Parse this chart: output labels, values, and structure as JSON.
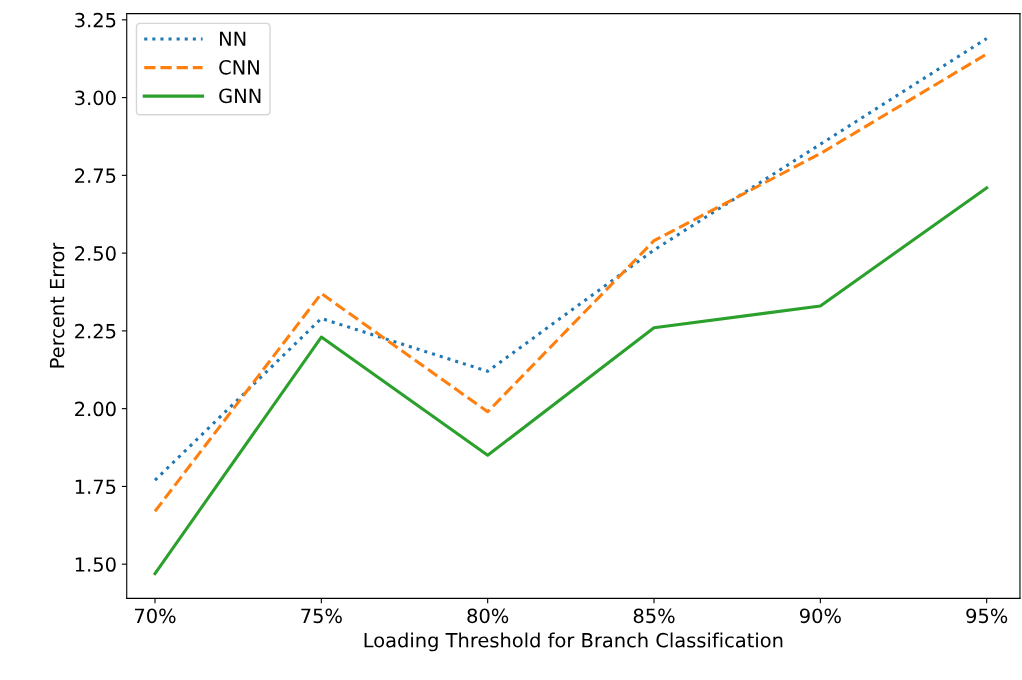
{
  "chart_data": {
    "type": "line",
    "xlabel": "Loading Threshold for Branch Classification",
    "ylabel": "Percent Error",
    "x": [
      70,
      75,
      80,
      85,
      90,
      95
    ],
    "xlim": [
      69.15,
      96.0
    ],
    "xticks": [
      {
        "value": 70,
        "label": "70%"
      },
      {
        "value": 75,
        "label": "75%"
      },
      {
        "value": 80,
        "label": "80%"
      },
      {
        "value": 85,
        "label": "85%"
      },
      {
        "value": 90,
        "label": "90%"
      },
      {
        "value": 95,
        "label": "95%"
      }
    ],
    "ylim": [
      1.39,
      3.27
    ],
    "yticks": [
      {
        "value": 1.5,
        "label": "1.50"
      },
      {
        "value": 1.75,
        "label": "1.75"
      },
      {
        "value": 2.0,
        "label": "2.00"
      },
      {
        "value": 2.25,
        "label": "2.25"
      },
      {
        "value": 2.5,
        "label": "2.50"
      },
      {
        "value": 2.75,
        "label": "2.75"
      },
      {
        "value": 3.0,
        "label": "3.00"
      },
      {
        "value": 3.25,
        "label": "3.25"
      }
    ],
    "legend": "top left",
    "grid": false,
    "series": [
      {
        "name": "NN",
        "color": "#1f77b4",
        "line_style": "dotted",
        "values": [
          1.77,
          2.29,
          2.12,
          2.51,
          2.85,
          3.19
        ]
      },
      {
        "name": "CNN",
        "color": "#ff7f0e",
        "line_style": "dashed",
        "values": [
          1.67,
          2.37,
          1.99,
          2.54,
          2.82,
          3.14
        ]
      },
      {
        "name": "GNN",
        "color": "#2ca02c",
        "line_style": "solid",
        "values": [
          1.47,
          2.23,
          1.85,
          2.26,
          2.33,
          2.71
        ]
      }
    ]
  }
}
